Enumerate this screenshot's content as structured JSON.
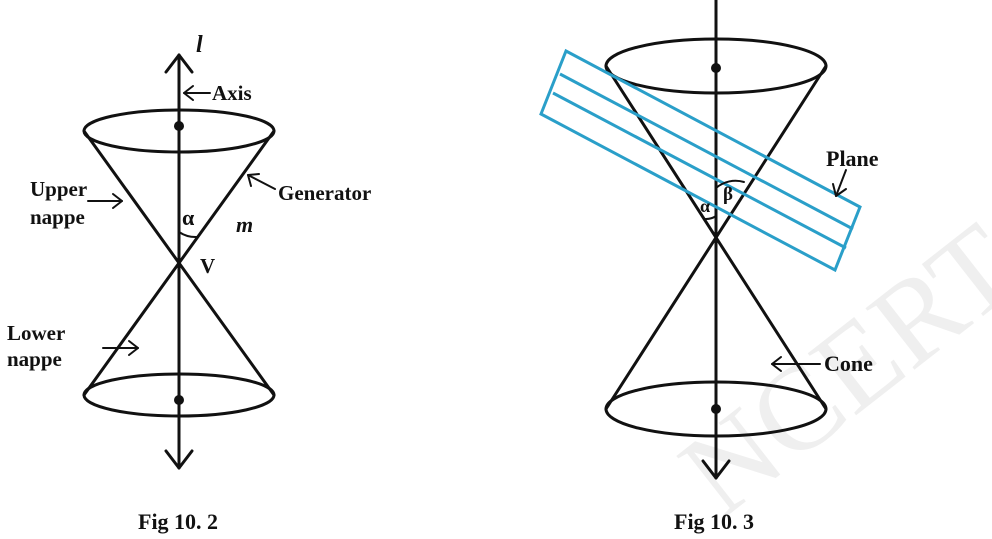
{
  "figure_left": {
    "caption": "Fig 10. 2",
    "labels": {
      "axis_line": "l",
      "axis": "Axis",
      "upper_nappe_1": "Upper",
      "upper_nappe_2": "nappe",
      "generator": "Generator",
      "generator_line": "m",
      "angle": "α",
      "vertex": "V",
      "lower_nappe_1": "Lower",
      "lower_nappe_2": "nappe"
    }
  },
  "figure_right": {
    "caption": "Fig 10. 3",
    "labels": {
      "plane": "Plane",
      "cone": "Cone",
      "alpha": "α",
      "beta": "β"
    }
  },
  "watermark": "NCERT  not to be republished",
  "colors": {
    "ink": "#111111",
    "plane": "#2a9fc9",
    "watermark": "#e3e3e3"
  }
}
